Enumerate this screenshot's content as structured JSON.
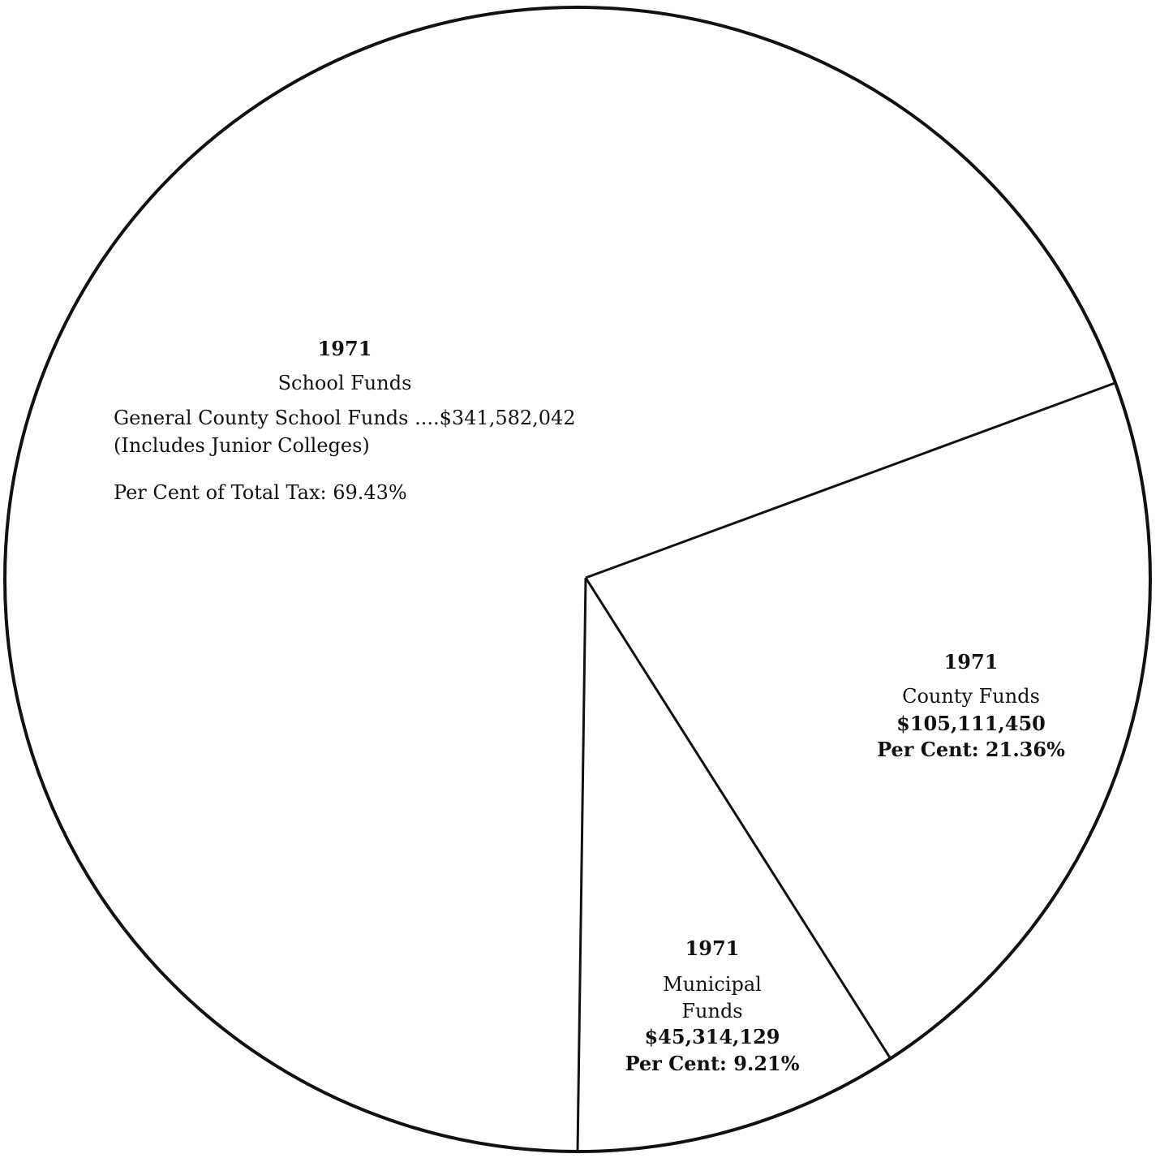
{
  "chart_data": {
    "type": "pie",
    "title": "",
    "slices": [
      {
        "name": "School Funds",
        "year": "1971",
        "value": 341582042,
        "percent": 69.43,
        "lines": {
          "year": "1971",
          "name": "School Funds",
          "detail": "General County School Funds ....$341,582,042",
          "note": "(Includes Junior Colleges)",
          "percent_text": "Per Cent of Total Tax: 69.43%"
        }
      },
      {
        "name": "County Funds",
        "year": "1971",
        "value": 105111450,
        "percent": 21.36,
        "lines": {
          "year": "1971",
          "name": "County Funds",
          "amount": "$105,111,450",
          "percent_text": "Per Cent: 21.36%"
        }
      },
      {
        "name": "Municipal Funds",
        "year": "1971",
        "value": 45314129,
        "percent": 9.21,
        "lines": {
          "year": "1971",
          "name_line1": "Municipal",
          "name_line2": "Funds",
          "amount": "$45,314,129",
          "percent_text": "Per Cent: 9.21%"
        }
      }
    ],
    "colors": {
      "stroke": "#111111",
      "fill": "#ffffff"
    }
  }
}
